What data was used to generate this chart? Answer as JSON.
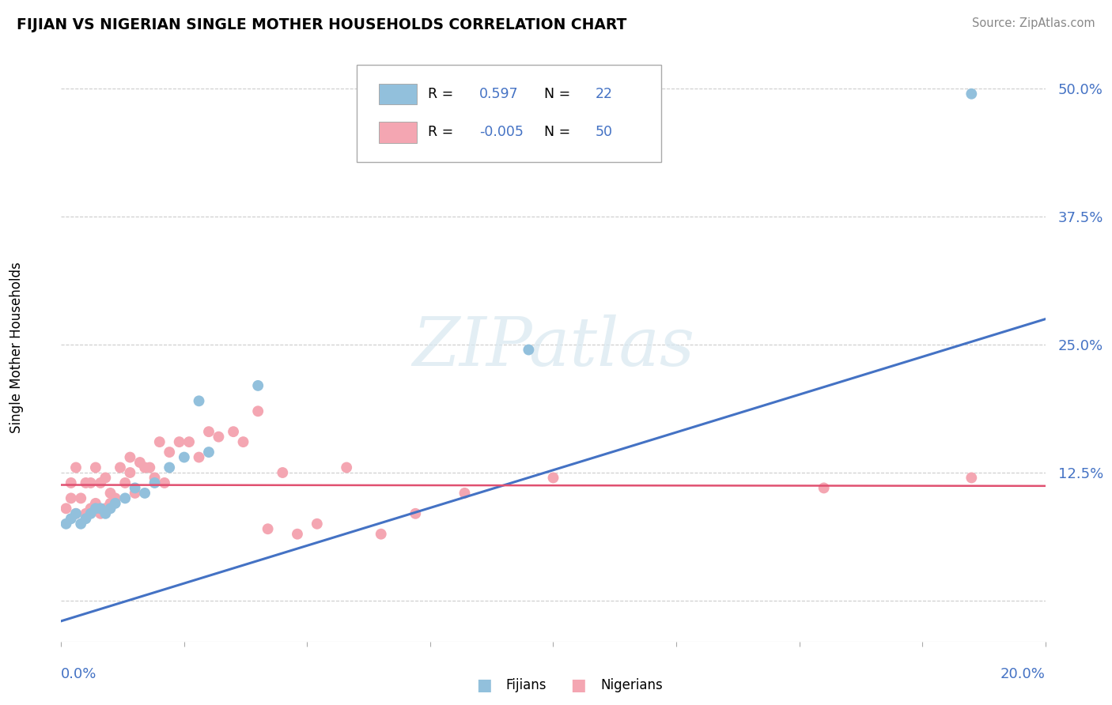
{
  "title": "FIJIAN VS NIGERIAN SINGLE MOTHER HOUSEHOLDS CORRELATION CHART",
  "source": "Source: ZipAtlas.com",
  "ylabel": "Single Mother Households",
  "ytick_values": [
    0.0,
    0.125,
    0.25,
    0.375,
    0.5
  ],
  "ytick_labels": [
    "",
    "12.5%",
    "25.0%",
    "37.5%",
    "50.0%"
  ],
  "xmin": 0.0,
  "xmax": 0.2,
  "ymin": -0.04,
  "ymax": 0.535,
  "fijian_color": "#92c0dc",
  "nigerian_color": "#f4a6b2",
  "fijian_line_color": "#4472c4",
  "nigerian_line_color": "#e05070",
  "tick_color": "#4472c4",
  "fijians_x": [
    0.001,
    0.002,
    0.003,
    0.004,
    0.005,
    0.006,
    0.007,
    0.008,
    0.009,
    0.01,
    0.011,
    0.013,
    0.015,
    0.017,
    0.019,
    0.022,
    0.025,
    0.028,
    0.03,
    0.04,
    0.095,
    0.185
  ],
  "fijians_y": [
    0.075,
    0.08,
    0.085,
    0.075,
    0.08,
    0.085,
    0.09,
    0.09,
    0.085,
    0.09,
    0.095,
    0.1,
    0.11,
    0.105,
    0.115,
    0.13,
    0.14,
    0.195,
    0.145,
    0.21,
    0.245,
    0.495
  ],
  "nigerians_x": [
    0.001,
    0.002,
    0.002,
    0.003,
    0.003,
    0.004,
    0.005,
    0.005,
    0.006,
    0.006,
    0.007,
    0.007,
    0.008,
    0.008,
    0.009,
    0.009,
    0.01,
    0.01,
    0.011,
    0.012,
    0.013,
    0.014,
    0.014,
    0.015,
    0.016,
    0.017,
    0.018,
    0.019,
    0.02,
    0.021,
    0.022,
    0.024,
    0.026,
    0.028,
    0.03,
    0.032,
    0.035,
    0.037,
    0.04,
    0.042,
    0.045,
    0.048,
    0.052,
    0.058,
    0.065,
    0.072,
    0.082,
    0.1,
    0.155,
    0.185
  ],
  "nigerians_y": [
    0.09,
    0.1,
    0.115,
    0.085,
    0.13,
    0.1,
    0.085,
    0.115,
    0.09,
    0.115,
    0.095,
    0.13,
    0.085,
    0.115,
    0.09,
    0.12,
    0.095,
    0.105,
    0.1,
    0.13,
    0.115,
    0.125,
    0.14,
    0.105,
    0.135,
    0.13,
    0.13,
    0.12,
    0.155,
    0.115,
    0.145,
    0.155,
    0.155,
    0.14,
    0.165,
    0.16,
    0.165,
    0.155,
    0.185,
    0.07,
    0.125,
    0.065,
    0.075,
    0.13,
    0.065,
    0.085,
    0.105,
    0.12,
    0.11,
    0.12
  ],
  "fijian_trend_x": [
    0.0,
    0.2
  ],
  "fijian_trend_y": [
    -0.02,
    0.275
  ],
  "nigerian_trend_x": [
    0.0,
    0.2
  ],
  "nigerian_trend_y": [
    0.113,
    0.112
  ]
}
